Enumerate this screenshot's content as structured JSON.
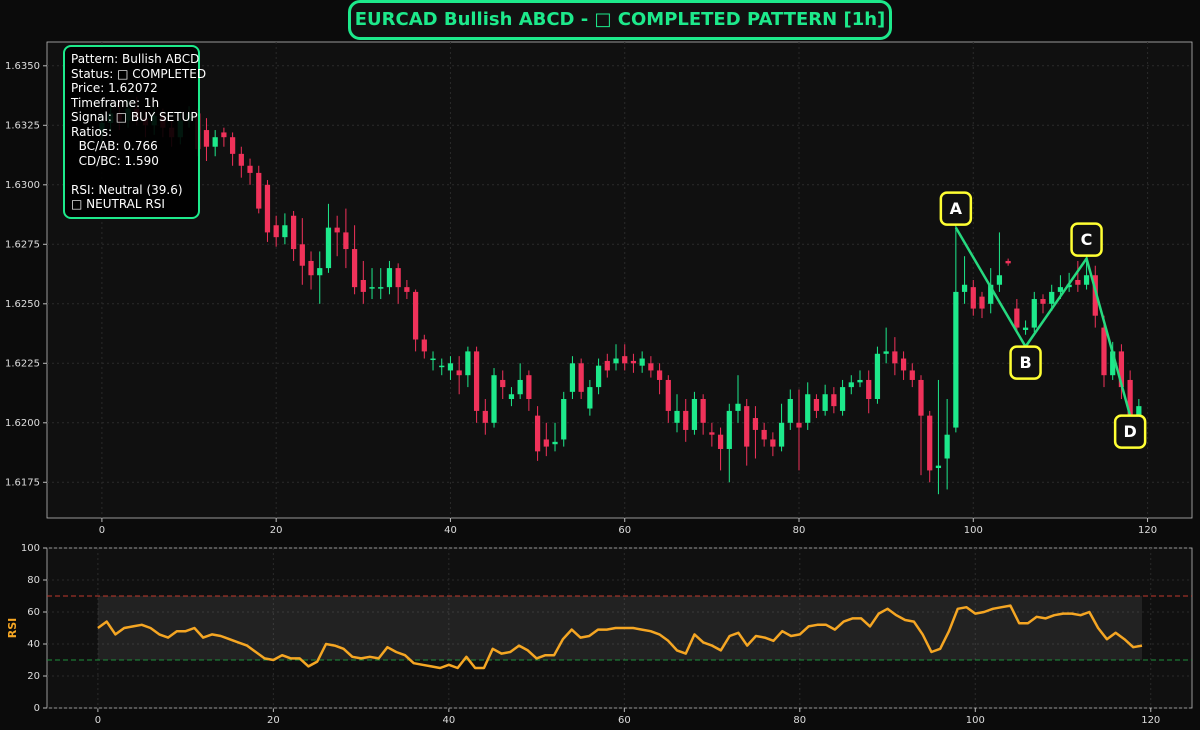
{
  "chart_data": [
    {
      "type": "candlestick",
      "title": "EURCAD Bullish ABCD - □ COMPLETED PATTERN [1h]",
      "annotation": [
        "Pattern: Bullish ABCD",
        "Status: □ COMPLETED",
        "Price: 1.62072",
        "Timeframe: 1h",
        "Signal: □ BUY SETUP",
        "Ratios:",
        "  BC/AB: 0.766",
        "  CD/BC: 1.590",
        "RSI: Neutral (39.6)",
        "□ NEUTRAL RSI"
      ],
      "x": [
        0,
        1,
        2,
        3,
        4,
        5,
        6,
        7,
        8,
        9,
        10,
        11,
        12,
        13,
        14,
        15,
        16,
        17,
        18,
        19,
        20,
        21,
        22,
        23,
        24,
        25,
        26,
        27,
        28,
        29,
        30,
        31,
        32,
        33,
        34,
        35,
        36,
        37,
        38,
        39,
        40,
        41,
        42,
        43,
        44,
        45,
        46,
        47,
        48,
        49,
        50,
        51,
        52,
        53,
        54,
        55,
        56,
        57,
        58,
        59,
        60,
        61,
        62,
        63,
        64,
        65,
        66,
        67,
        68,
        69,
        70,
        71,
        72,
        73,
        74,
        75,
        76,
        77,
        78,
        79,
        80,
        81,
        82,
        83,
        84,
        85,
        86,
        87,
        88,
        89,
        90,
        91,
        92,
        93,
        94,
        95,
        96,
        97,
        98,
        99,
        100,
        101,
        102,
        103,
        104,
        105,
        106,
        107,
        108,
        109,
        110,
        111,
        112,
        113,
        114,
        115,
        116,
        117,
        118,
        119
      ],
      "open": [
        1.6322,
        1.6326,
        1.633,
        1.6327,
        1.6332,
        1.6328,
        1.6325,
        1.6329,
        1.6324,
        1.632,
        1.6327,
        1.633,
        1.6323,
        1.6316,
        1.6322,
        1.632,
        1.6313,
        1.6308,
        1.6305,
        1.63,
        1.6283,
        1.6278,
        1.6287,
        1.6275,
        1.6268,
        1.6262,
        1.6265,
        1.6282,
        1.628,
        1.6273,
        1.626,
        1.6257,
        1.6257,
        1.6257,
        1.6265,
        1.6257,
        1.6255,
        1.6235,
        1.6227,
        1.6224,
        1.6222,
        1.6222,
        1.622,
        1.623,
        1.6205,
        1.62,
        1.6218,
        1.621,
        1.6212,
        1.622,
        1.6203,
        1.6193,
        1.6191,
        1.6193,
        1.6213,
        1.6225,
        1.6206,
        1.6215,
        1.6226,
        1.6225,
        1.6228,
        1.6226,
        1.6224,
        1.6225,
        1.6222,
        1.6218,
        1.62,
        1.6205,
        1.6197,
        1.621,
        1.6196,
        1.6195,
        1.6189,
        1.6205,
        1.6207,
        1.6202,
        1.6197,
        1.6193,
        1.619,
        1.62,
        1.62,
        1.62,
        1.621,
        1.6205,
        1.6212,
        1.6205,
        1.6215,
        1.6217,
        1.6218,
        1.621,
        1.6229,
        1.623,
        1.6227,
        1.6222,
        1.6218,
        1.6203,
        1.6181,
        1.6185,
        1.6198,
        1.6255,
        1.6257,
        1.6253,
        1.625,
        1.6258,
        1.6268,
        1.6248,
        1.6239,
        1.624,
        1.6252,
        1.625,
        1.6255,
        1.6257,
        1.626,
        1.6258,
        1.6262,
        1.624,
        1.622,
        1.623,
        1.6218,
        1.62
      ],
      "high": [
        1.633,
        1.6334,
        1.6335,
        1.6336,
        1.6337,
        1.6331,
        1.6333,
        1.6332,
        1.6327,
        1.6331,
        1.6333,
        1.6332,
        1.6328,
        1.6323,
        1.6324,
        1.6322,
        1.6316,
        1.6311,
        1.6308,
        1.6302,
        1.6287,
        1.6288,
        1.6289,
        1.6286,
        1.6272,
        1.6272,
        1.6292,
        1.6287,
        1.629,
        1.6283,
        1.6268,
        1.6265,
        1.6265,
        1.6268,
        1.6267,
        1.626,
        1.6256,
        1.6237,
        1.623,
        1.6227,
        1.6228,
        1.6228,
        1.6232,
        1.6232,
        1.621,
        1.6223,
        1.6222,
        1.6215,
        1.6225,
        1.6222,
        1.6207,
        1.62,
        1.62,
        1.6213,
        1.6228,
        1.6227,
        1.6218,
        1.6227,
        1.6229,
        1.6233,
        1.6233,
        1.6229,
        1.623,
        1.6228,
        1.6225,
        1.622,
        1.6212,
        1.621,
        1.6213,
        1.6212,
        1.62,
        1.6198,
        1.6208,
        1.622,
        1.621,
        1.6207,
        1.62,
        1.6196,
        1.6208,
        1.6214,
        1.6214,
        1.6217,
        1.6212,
        1.6216,
        1.6215,
        1.6218,
        1.622,
        1.6222,
        1.6222,
        1.6232,
        1.624,
        1.6236,
        1.623,
        1.6225,
        1.622,
        1.6205,
        1.6218,
        1.621,
        1.6285,
        1.627,
        1.626,
        1.6255,
        1.6265,
        1.628,
        1.6269,
        1.6252,
        1.6243,
        1.6255,
        1.6254,
        1.6258,
        1.6262,
        1.6263,
        1.6268,
        1.627,
        1.6266,
        1.6245,
        1.6234,
        1.6233,
        1.6222,
        1.621
      ],
      "low": [
        1.6318,
        1.6322,
        1.6323,
        1.6324,
        1.6325,
        1.632,
        1.6321,
        1.632,
        1.6316,
        1.6317,
        1.6324,
        1.6312,
        1.631,
        1.6312,
        1.6316,
        1.6308,
        1.6303,
        1.63,
        1.6288,
        1.6276,
        1.6274,
        1.6275,
        1.6268,
        1.6258,
        1.6256,
        1.625,
        1.6263,
        1.627,
        1.6265,
        1.6254,
        1.625,
        1.6252,
        1.6252,
        1.6254,
        1.625,
        1.6252,
        1.623,
        1.6227,
        1.6222,
        1.622,
        1.6218,
        1.6212,
        1.6215,
        1.62,
        1.6195,
        1.6198,
        1.621,
        1.6207,
        1.621,
        1.6205,
        1.6184,
        1.6186,
        1.6188,
        1.619,
        1.621,
        1.621,
        1.6203,
        1.6212,
        1.6219,
        1.6222,
        1.6222,
        1.6221,
        1.6221,
        1.6219,
        1.6212,
        1.62,
        1.6196,
        1.6192,
        1.6195,
        1.6195,
        1.619,
        1.618,
        1.6175,
        1.62,
        1.6182,
        1.6185,
        1.619,
        1.6186,
        1.6188,
        1.6197,
        1.618,
        1.6197,
        1.6202,
        1.6203,
        1.6204,
        1.6203,
        1.6212,
        1.6215,
        1.6204,
        1.6208,
        1.6225,
        1.622,
        1.6218,
        1.6215,
        1.6178,
        1.6175,
        1.617,
        1.6172,
        1.6196,
        1.625,
        1.6245,
        1.6244,
        1.6246,
        1.6255,
        1.6266,
        1.6238,
        1.6237,
        1.6238,
        1.6246,
        1.6247,
        1.6252,
        1.6255,
        1.6255,
        1.6256,
        1.624,
        1.6215,
        1.6218,
        1.621,
        1.6196,
        1.6198
      ],
      "close": [
        1.6326,
        1.633,
        1.6327,
        1.6332,
        1.6328,
        1.6325,
        1.6329,
        1.6324,
        1.632,
        1.6327,
        1.633,
        1.6315,
        1.6316,
        1.632,
        1.632,
        1.6313,
        1.6308,
        1.6305,
        1.629,
        1.628,
        1.6278,
        1.6283,
        1.6273,
        1.6266,
        1.6262,
        1.6265,
        1.6282,
        1.628,
        1.6273,
        1.6257,
        1.6255,
        1.6257,
        1.6257,
        1.6265,
        1.6257,
        1.6255,
        1.6235,
        1.623,
        1.6227,
        1.6224,
        1.6225,
        1.622,
        1.623,
        1.6205,
        1.62,
        1.622,
        1.6215,
        1.6212,
        1.6218,
        1.621,
        1.6188,
        1.619,
        1.6192,
        1.621,
        1.6225,
        1.6213,
        1.6215,
        1.6224,
        1.6222,
        1.6227,
        1.6225,
        1.6225,
        1.6227,
        1.6222,
        1.6218,
        1.6205,
        1.6205,
        1.6197,
        1.621,
        1.62,
        1.6195,
        1.6189,
        1.6205,
        1.6208,
        1.619,
        1.6197,
        1.6193,
        1.619,
        1.62,
        1.621,
        1.6198,
        1.6212,
        1.6205,
        1.6212,
        1.6207,
        1.6215,
        1.6217,
        1.6218,
        1.621,
        1.6229,
        1.623,
        1.6225,
        1.6222,
        1.6218,
        1.6203,
        1.618,
        1.6182,
        1.6195,
        1.6255,
        1.6258,
        1.6248,
        1.6248,
        1.6258,
        1.6262,
        1.6267,
        1.624,
        1.624,
        1.6252,
        1.625,
        1.6255,
        1.6257,
        1.6258,
        1.6258,
        1.6262,
        1.6245,
        1.622,
        1.623,
        1.6215,
        1.62,
        1.6207
      ],
      "up_color": "#1de98b",
      "down_color": "#f0325a",
      "pattern": {
        "color": "#26d97f",
        "box_color": "#ffff33",
        "points": [
          {
            "label": "A",
            "x": 98,
            "y": 1.6282
          },
          {
            "label": "B",
            "x": 106,
            "y": 1.6232
          },
          {
            "label": "C",
            "x": 113,
            "y": 1.6269
          },
          {
            "label": "D",
            "x": 118,
            "y": 1.6203
          }
        ]
      },
      "xlim": [
        -6.3,
        125.1
      ],
      "ylim": [
        1.616,
        1.636
      ],
      "xticks": [
        0,
        20,
        40,
        60,
        80,
        100,
        120
      ],
      "yticks": [
        1.6175,
        {
          "value": 1.62,
          "label": "1.6200"
        },
        1.6225,
        {
          "value": 1.625,
          "label": "1.6250"
        },
        1.6275,
        {
          "value": 1.63,
          "label": "1.6300"
        },
        1.6325,
        {
          "value": 1.635,
          "label": "1.6350"
        }
      ],
      "grid": true
    },
    {
      "type": "line",
      "ylabel": "RSI",
      "x": [
        0,
        1,
        2,
        3,
        4,
        5,
        6,
        7,
        8,
        9,
        10,
        11,
        12,
        13,
        14,
        15,
        16,
        17,
        18,
        19,
        20,
        21,
        22,
        23,
        24,
        25,
        26,
        27,
        28,
        29,
        30,
        31,
        32,
        33,
        34,
        35,
        36,
        37,
        38,
        39,
        40,
        41,
        42,
        43,
        44,
        45,
        46,
        47,
        48,
        49,
        50,
        51,
        52,
        53,
        54,
        55,
        56,
        57,
        58,
        59,
        60,
        61,
        62,
        63,
        64,
        65,
        66,
        67,
        68,
        69,
        70,
        71,
        72,
        73,
        74,
        75,
        76,
        77,
        78,
        79,
        80,
        81,
        82,
        83,
        84,
        85,
        86,
        87,
        88,
        89,
        90,
        91,
        92,
        93,
        94,
        95,
        96,
        97,
        98,
        99,
        100,
        101,
        102,
        103,
        104,
        105,
        106,
        107,
        108,
        109,
        110,
        111,
        112,
        113,
        114,
        115,
        116,
        117,
        118,
        119
      ],
      "values": [
        50,
        54,
        46,
        50,
        51,
        52,
        50,
        46,
        44,
        48,
        48,
        50,
        44,
        46,
        45,
        43,
        41,
        39,
        35,
        31,
        30,
        33,
        31,
        31,
        26,
        29,
        40,
        39,
        37,
        32,
        31,
        32,
        31,
        38,
        35,
        33,
        28,
        27,
        26,
        25,
        27,
        25,
        32,
        25,
        25,
        37,
        34,
        35,
        39,
        36,
        31,
        33,
        33,
        43,
        49,
        44,
        45,
        49,
        49,
        50,
        50,
        50,
        49,
        48,
        46,
        42,
        36,
        34,
        46,
        41,
        39,
        36,
        45,
        47,
        39,
        45,
        44,
        42,
        48,
        45,
        46,
        51,
        52,
        52,
        49,
        54,
        56,
        56,
        51,
        59,
        62,
        58,
        55,
        54,
        46,
        35,
        37,
        48,
        62,
        63,
        59,
        60,
        62,
        63,
        64,
        53,
        53,
        57,
        56,
        58,
        59,
        59,
        58,
        60,
        50,
        43,
        47,
        43,
        38,
        39
      ],
      "color": "#f5a623",
      "overbought": 70,
      "overbought_color": "#c0392b",
      "oversold": 30,
      "oversold_color": "#1e8f3c",
      "xlim": [
        -5.8,
        124.7
      ],
      "ylim": [
        0,
        100
      ],
      "xticks": [
        0,
        20,
        40,
        60,
        80,
        100,
        120
      ],
      "yticks": [
        0,
        20,
        40,
        60,
        80,
        100
      ],
      "grid": true
    }
  ]
}
